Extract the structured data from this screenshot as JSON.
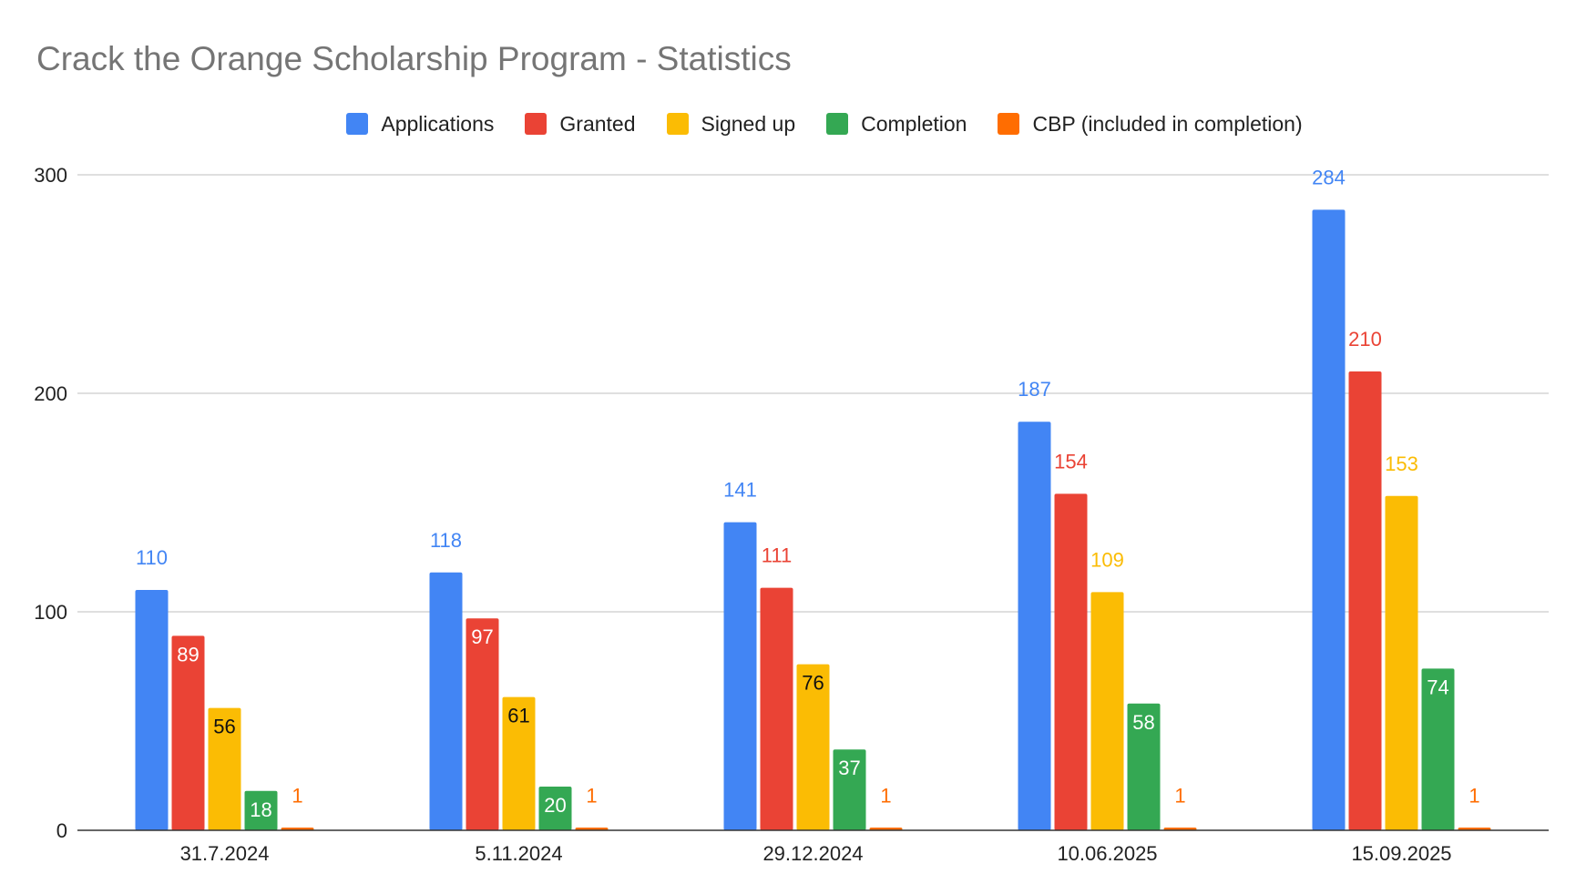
{
  "chart_data": {
    "type": "bar",
    "title": "Crack the Orange Scholarship Program - Statistics",
    "categories": [
      "31.7.2024",
      "5.11.2024",
      "29.12.2024",
      "10.06.2025",
      "15.09.2025"
    ],
    "series": [
      {
        "name": "Applications",
        "color": "#4285f4",
        "values": [
          110,
          118,
          141,
          187,
          284
        ]
      },
      {
        "name": "Granted",
        "color": "#ea4335",
        "values": [
          89,
          97,
          111,
          154,
          210
        ]
      },
      {
        "name": "Signed up",
        "color": "#fbbc04",
        "values": [
          56,
          61,
          76,
          109,
          153
        ]
      },
      {
        "name": "Completion",
        "color": "#34a853",
        "values": [
          18,
          20,
          37,
          58,
          74
        ]
      },
      {
        "name": "CBP (included in completion)",
        "color": "#ff6d01",
        "values": [
          1,
          1,
          1,
          1,
          1
        ]
      }
    ],
    "ylim": [
      0,
      300
    ],
    "yticks": [
      0,
      100,
      200,
      300
    ],
    "xlabel": "",
    "ylabel": "",
    "grid": true,
    "legend_position": "top"
  }
}
